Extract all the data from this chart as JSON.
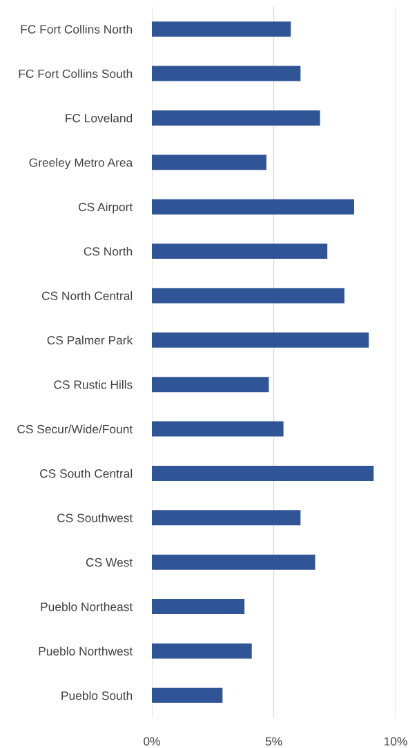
{
  "chart_data": {
    "type": "bar",
    "orientation": "horizontal",
    "categories": [
      "FC Fort Collins North",
      "FC Fort Collins South",
      "FC Loveland",
      "Greeley Metro Area",
      "CS Airport",
      "CS North",
      "CS North Central",
      "CS Palmer Park",
      "CS Rustic Hills",
      "CS Secur/Wide/Fount",
      "CS South Central",
      "CS Southwest",
      "CS West",
      "Pueblo Northeast",
      "Pueblo Northwest",
      "Pueblo South"
    ],
    "values": [
      5.7,
      6.1,
      6.9,
      4.7,
      8.3,
      7.2,
      7.9,
      8.9,
      4.8,
      5.4,
      9.1,
      6.1,
      6.7,
      3.8,
      4.1,
      2.9
    ],
    "color": "#2f5597",
    "xlim": [
      0,
      10
    ],
    "xticks": [
      {
        "value": 0,
        "label": "0%"
      },
      {
        "value": 5,
        "label": "5%"
      },
      {
        "value": 10,
        "label": "10%"
      }
    ],
    "grid": "x",
    "legend": false
  }
}
